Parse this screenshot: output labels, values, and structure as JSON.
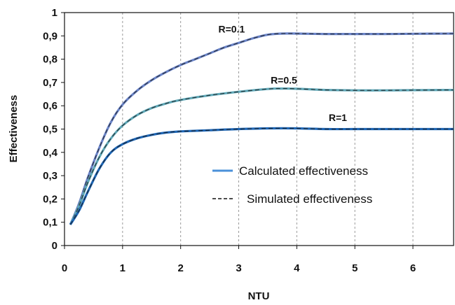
{
  "chart_data": {
    "type": "line",
    "title": "",
    "xlabel": "NTU",
    "ylabel": "Effectiveness",
    "xlim": [
      0,
      6.7
    ],
    "ylim": [
      0,
      1
    ],
    "x_ticks": [
      "0",
      "1",
      "2",
      "3",
      "4",
      "5",
      "6"
    ],
    "y_ticks": [
      "0",
      "0,1",
      "0,2",
      "0,3",
      "0,4",
      "0,5",
      "0,6",
      "0,7",
      "0,8",
      "0,9",
      "1"
    ],
    "grid": "vertical dashed",
    "legend": {
      "placement": "center-right",
      "entries": [
        {
          "label": "Calculated effectiveness",
          "style": "solid",
          "color": "#4a90d9"
        },
        {
          "label": "Simulated effectiveness",
          "style": "dashed",
          "color": "#111111"
        }
      ]
    },
    "annotations": [
      {
        "text": "R=0.1",
        "x": 2.65,
        "y": 0.915
      },
      {
        "text": "R=0.5",
        "x": 3.55,
        "y": 0.695
      },
      {
        "text": "R=1",
        "x": 4.55,
        "y": 0.535
      }
    ],
    "series": [
      {
        "key": "r01",
        "color": "#6a84c8",
        "points": [
          [
            0.1,
            0.09
          ],
          [
            0.25,
            0.18
          ],
          [
            0.4,
            0.29
          ],
          [
            0.6,
            0.42
          ],
          [
            0.8,
            0.53
          ],
          [
            1.0,
            0.605
          ],
          [
            1.25,
            0.665
          ],
          [
            1.5,
            0.71
          ],
          [
            1.75,
            0.745
          ],
          [
            2.0,
            0.775
          ],
          [
            2.25,
            0.8
          ],
          [
            2.5,
            0.825
          ],
          [
            2.75,
            0.85
          ],
          [
            3.0,
            0.87
          ],
          [
            3.25,
            0.89
          ],
          [
            3.5,
            0.905
          ],
          [
            3.75,
            0.91
          ],
          [
            4.0,
            0.91
          ],
          [
            4.5,
            0.908
          ],
          [
            5.0,
            0.908
          ],
          [
            5.5,
            0.908
          ],
          [
            6.0,
            0.909
          ],
          [
            6.7,
            0.91
          ]
        ]
      },
      {
        "key": "r05",
        "color": "#5fa8b8",
        "points": [
          [
            0.1,
            0.09
          ],
          [
            0.25,
            0.17
          ],
          [
            0.4,
            0.27
          ],
          [
            0.6,
            0.38
          ],
          [
            0.8,
            0.46
          ],
          [
            1.0,
            0.515
          ],
          [
            1.25,
            0.56
          ],
          [
            1.5,
            0.59
          ],
          [
            1.75,
            0.61
          ],
          [
            2.0,
            0.625
          ],
          [
            2.5,
            0.645
          ],
          [
            3.0,
            0.66
          ],
          [
            3.5,
            0.672
          ],
          [
            3.75,
            0.674
          ],
          [
            4.0,
            0.673
          ],
          [
            4.5,
            0.668
          ],
          [
            5.0,
            0.666
          ],
          [
            5.5,
            0.666
          ],
          [
            6.0,
            0.667
          ],
          [
            6.7,
            0.668
          ]
        ]
      },
      {
        "key": "r1",
        "color": "#1e66b5",
        "points": [
          [
            0.1,
            0.09
          ],
          [
            0.25,
            0.15
          ],
          [
            0.4,
            0.23
          ],
          [
            0.6,
            0.33
          ],
          [
            0.8,
            0.4
          ],
          [
            1.0,
            0.435
          ],
          [
            1.25,
            0.46
          ],
          [
            1.5,
            0.475
          ],
          [
            1.75,
            0.485
          ],
          [
            2.0,
            0.49
          ],
          [
            2.5,
            0.495
          ],
          [
            3.0,
            0.5
          ],
          [
            3.5,
            0.503
          ],
          [
            4.0,
            0.503
          ],
          [
            4.5,
            0.5
          ],
          [
            5.0,
            0.5
          ],
          [
            5.5,
            0.5
          ],
          [
            6.0,
            0.5
          ],
          [
            6.7,
            0.5
          ]
        ]
      }
    ]
  }
}
